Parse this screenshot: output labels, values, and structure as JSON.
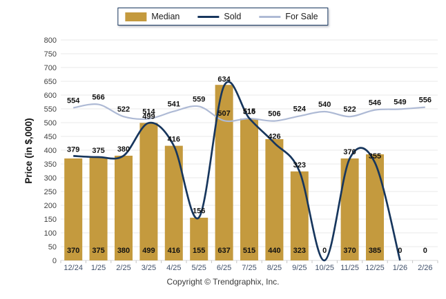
{
  "legend": {
    "items": [
      {
        "label": "Median",
        "type": "bar",
        "color": "#C49A3E"
      },
      {
        "label": "Sold",
        "type": "line",
        "color": "#17365D"
      },
      {
        "label": "For Sale",
        "type": "line",
        "color": "#AEBAD5"
      }
    ]
  },
  "y_axis": {
    "title": "Price (in $,000)"
  },
  "footer": {
    "copyright": "Copyright © Trendgraphix, Inc."
  },
  "colors": {
    "median_bar": "#C49A3E",
    "sold_line": "#17365D",
    "for_sale_line": "#AEBAD5",
    "gridline": "#E9E9E9",
    "axis_baseline": "#D8D8D8",
    "tick_mark": "#C4C4C4",
    "axis_text": "#404040",
    "x_label_text": "#40506A",
    "data_label_text": "#111111"
  },
  "chart_data": {
    "type": "bar+line combo",
    "title": "",
    "xlabel": "",
    "ylabel": "Price (in $,000)",
    "ylim": [
      0,
      800
    ],
    "y_tick_step": 50,
    "grid": "horizontal",
    "legend_position": "top-center",
    "categories": [
      "12/24",
      "1/25",
      "2/25",
      "3/25",
      "4/25",
      "5/25",
      "6/25",
      "7/25",
      "8/25",
      "9/25",
      "10/25",
      "11/25",
      "12/25",
      "1/26",
      "2/26"
    ],
    "series": [
      {
        "name": "Median",
        "type": "bar",
        "color": "#C49A3E",
        "values": [
          370,
          375,
          380,
          499,
          416,
          155,
          637,
          515,
          440,
          323,
          0,
          370,
          385,
          0,
          0
        ],
        "labels_position": "inside-bar-bottom"
      },
      {
        "name": "Sold",
        "type": "line",
        "color": "#17365D",
        "values": [
          379,
          375,
          380,
          499,
          416,
          156,
          634,
          516,
          426,
          323,
          0,
          370,
          355,
          0,
          0
        ],
        "line_drawn_through": "1/26",
        "zero_value_labels_merged_with_bar_row": true
      },
      {
        "name": "For Sale",
        "type": "line",
        "color": "#AEBAD5",
        "values": [
          554,
          566,
          522,
          514,
          541,
          559,
          507,
          515,
          506,
          524,
          540,
          522,
          546,
          549,
          556
        ]
      }
    ]
  }
}
